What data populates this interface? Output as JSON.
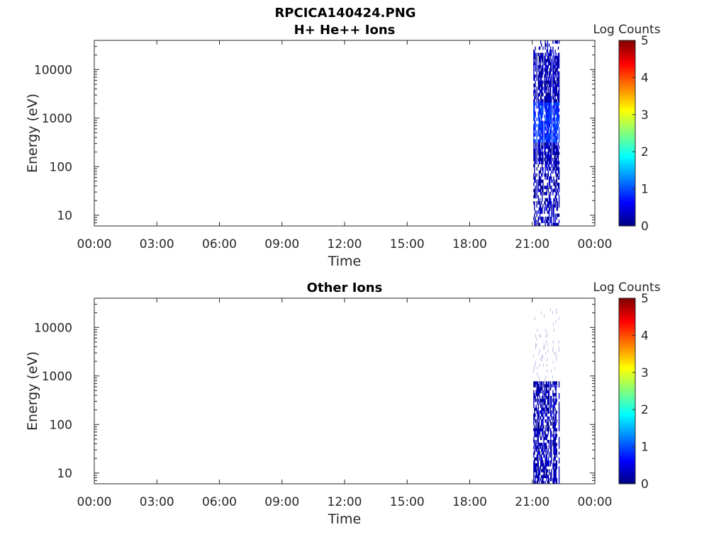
{
  "figure": {
    "filename": "RPCICA140424.PNG"
  },
  "colorbar": {
    "label": "Log Counts",
    "ticks": [
      "0",
      "1",
      "2",
      "3",
      "4",
      "5"
    ],
    "colors": [
      "#00007f",
      "#0000ff",
      "#007fff",
      "#00ffff",
      "#7fff7f",
      "#ffff00",
      "#ff7f00",
      "#ff0000",
      "#7f0000"
    ]
  },
  "chart_data": [
    {
      "type": "heatmap",
      "title": "H+ He++ Ions",
      "xlabel": "Time",
      "ylabel": "Energy (eV)",
      "xticks": [
        "00:00",
        "03:00",
        "06:00",
        "09:00",
        "12:00",
        "15:00",
        "18:00",
        "21:00",
        "00:00"
      ],
      "xlim_hours": [
        0,
        24
      ],
      "yscale": "log",
      "ylim": [
        6,
        40000
      ],
      "yticks": [
        "10",
        "100",
        "1000",
        "10000"
      ],
      "zlabel": "Log Counts",
      "zlim": [
        0,
        5
      ],
      "data_time_range_hours": [
        21.0,
        22.4
      ],
      "data_energy_range_eV": [
        6,
        40000
      ],
      "peak_energy_range_eV": [
        300,
        2000
      ],
      "peak_log_counts": 1.0
    },
    {
      "type": "heatmap",
      "title": "Other Ions",
      "xlabel": "Time",
      "ylabel": "Energy (eV)",
      "xticks": [
        "00:00",
        "03:00",
        "06:00",
        "09:00",
        "12:00",
        "15:00",
        "18:00",
        "21:00",
        "00:00"
      ],
      "xlim_hours": [
        0,
        24
      ],
      "yscale": "log",
      "ylim": [
        6,
        40000
      ],
      "yticks": [
        "10",
        "100",
        "1000",
        "10000"
      ],
      "zlabel": "Log Counts",
      "zlim": [
        0,
        5
      ],
      "data_time_range_hours": [
        21.0,
        22.4
      ],
      "data_energy_range_eV": [
        6,
        25000
      ],
      "dense_energy_range_eV": [
        6,
        700
      ],
      "peak_log_counts": 0.7
    }
  ]
}
